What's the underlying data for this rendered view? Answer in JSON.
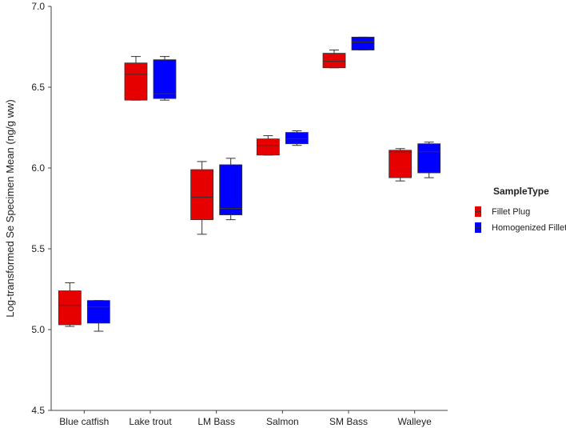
{
  "chart_data": {
    "type": "boxplot",
    "ylabel": "Log-transformed Se Specimen Mean (ng/g ww)",
    "ylim": [
      4.5,
      7.0
    ],
    "yticks": [
      "4.5",
      "5.0",
      "5.5",
      "6.0",
      "6.5",
      "7.0"
    ],
    "categories": [
      "Blue catfish",
      "Lake trout",
      "LM Bass",
      "Salmon",
      "SM Bass",
      "Walleye"
    ],
    "grid": false,
    "legend": {
      "title": "SampleType",
      "position": "right"
    },
    "series": [
      {
        "name": "Fillet Plug",
        "color": "#e60000",
        "boxes": [
          {
            "min": 5.02,
            "q1": 5.03,
            "median": 5.15,
            "q3": 5.24,
            "max": 5.29
          },
          {
            "min": 6.42,
            "q1": 6.42,
            "median": 6.58,
            "q3": 6.65,
            "max": 6.69
          },
          {
            "min": 5.59,
            "q1": 5.68,
            "median": 5.82,
            "q3": 5.99,
            "max": 6.04
          },
          {
            "min": 6.08,
            "q1": 6.08,
            "median": 6.14,
            "q3": 6.18,
            "max": 6.2
          },
          {
            "min": 6.62,
            "q1": 6.62,
            "median": 6.66,
            "q3": 6.71,
            "max": 6.73
          },
          {
            "min": 5.92,
            "q1": 5.94,
            "median": 6.1,
            "q3": 6.11,
            "max": 6.12
          }
        ]
      },
      {
        "name": "Homogenized Fillet",
        "color": "#0000ff",
        "boxes": [
          {
            "min": 4.99,
            "q1": 5.04,
            "median": 5.14,
            "q3": 5.18,
            "max": 5.18
          },
          {
            "min": 6.42,
            "q1": 6.43,
            "median": 6.46,
            "q3": 6.67,
            "max": 6.69
          },
          {
            "min": 5.68,
            "q1": 5.71,
            "median": 5.75,
            "q3": 6.02,
            "max": 6.06
          },
          {
            "min": 6.14,
            "q1": 6.15,
            "median": 6.18,
            "q3": 6.22,
            "max": 6.23
          },
          {
            "min": 6.73,
            "q1": 6.73,
            "median": 6.78,
            "q3": 6.81,
            "max": 6.81
          },
          {
            "min": 5.94,
            "q1": 5.97,
            "median": 6.1,
            "q3": 6.15,
            "max": 6.16
          }
        ]
      }
    ]
  }
}
